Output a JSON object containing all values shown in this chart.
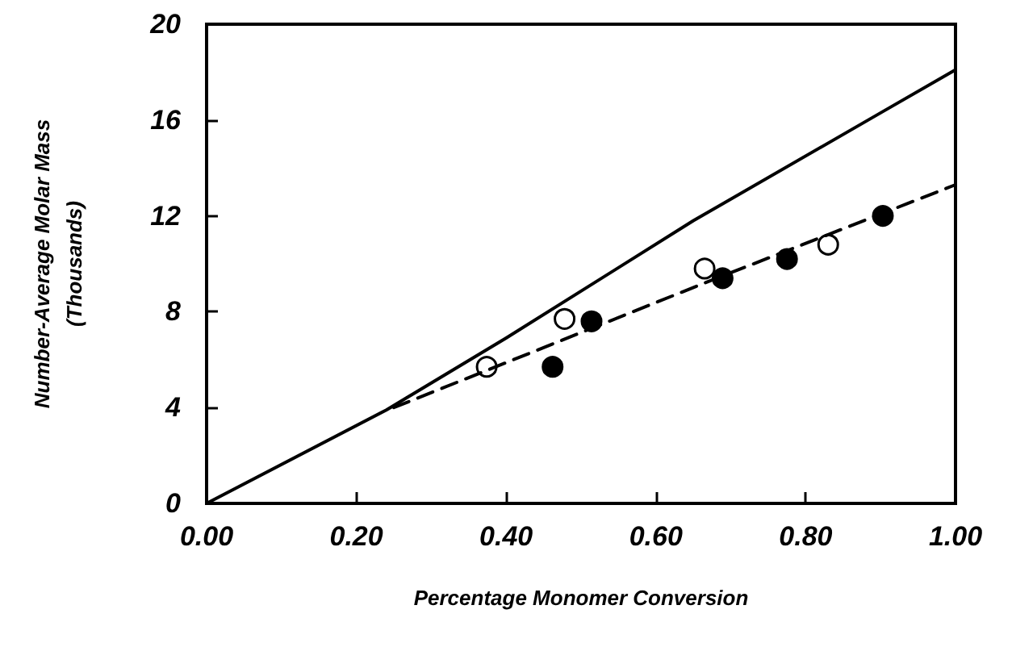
{
  "chart_data": {
    "type": "scatter",
    "xlabel": "Percentage Monomer Conversion",
    "ylabel": "Number-Average Molar Mass\n(Thousands)",
    "xlim": [
      0,
      1
    ],
    "ylim": [
      0,
      20
    ],
    "xticks": [
      {
        "value": 0,
        "label": "0.00"
      },
      {
        "value": 0.2,
        "label": "0.20"
      },
      {
        "value": 0.4,
        "label": "0.40"
      },
      {
        "value": 0.6,
        "label": "0.60"
      },
      {
        "value": 0.8,
        "label": "0.80"
      },
      {
        "value": 1,
        "label": "1.00"
      }
    ],
    "yticks": [
      0,
      4,
      8,
      12,
      16,
      20
    ],
    "grid": false,
    "series": [
      {
        "type": "line",
        "color": "#000000",
        "line_style": "solid",
        "marker": "none",
        "x": [
          0,
          0.24,
          0.4,
          0.65,
          0.9,
          1.0
        ],
        "values": [
          0,
          3.9,
          6.9,
          11.8,
          16.3,
          18.1
        ]
      },
      {
        "type": "line",
        "color": "#000000",
        "line_style": "dashed",
        "marker": "none",
        "x": [
          0.25,
          0.37,
          0.665,
          1.0
        ],
        "values": [
          4.0,
          5.5,
          9.2,
          13.3
        ]
      },
      {
        "type": "scatter",
        "color": "#ffffff",
        "marker": "circle",
        "x": [
          0.374,
          0.478,
          0.665,
          0.83
        ],
        "values": [
          5.7,
          7.7,
          9.8,
          10.8
        ]
      },
      {
        "type": "scatter",
        "color": "#000000",
        "marker": "circle",
        "x": [
          0.462,
          0.514,
          0.689,
          0.775,
          0.903
        ],
        "values": [
          5.7,
          7.6,
          9.4,
          10.2,
          12.0
        ]
      }
    ]
  }
}
